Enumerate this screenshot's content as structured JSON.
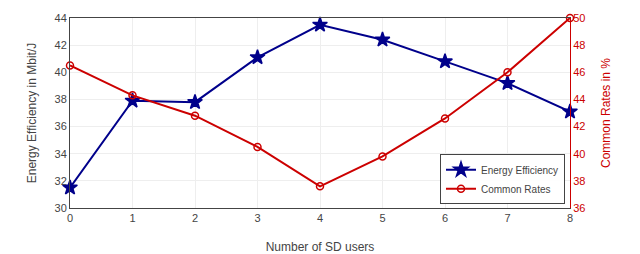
{
  "chart_data": {
    "type": "line",
    "x": [
      0,
      1,
      2,
      3,
      4,
      5,
      6,
      7,
      8
    ],
    "xlabel": "Number of SD users",
    "ylabel": "Energy Efficiency in Mbit/J",
    "y2label": "Common Rates in %",
    "xlim": [
      0,
      8
    ],
    "xticks": [
      0,
      1,
      2,
      3,
      4,
      5,
      6,
      7,
      8
    ],
    "ylim": [
      30,
      44
    ],
    "yticks": [
      30,
      32,
      34,
      36,
      38,
      40,
      42,
      44
    ],
    "y2lim": [
      36,
      50
    ],
    "y2ticks": [
      36,
      38,
      40,
      42,
      44,
      46,
      48,
      50
    ],
    "grid": true,
    "legend": "lower right",
    "series": [
      {
        "name": "Energy Efficiency",
        "color": "#00008B",
        "marker": "star",
        "values": [
          31.5,
          37.9,
          37.8,
          41.1,
          43.5,
          42.4,
          40.8,
          39.2,
          37.1
        ]
      },
      {
        "name": "Common Rates",
        "color": "#CC0000",
        "marker": "circle-open",
        "axis": "y2",
        "values": [
          46.5,
          44.3,
          42.8,
          40.5,
          37.6,
          39.8,
          42.6,
          46.0,
          50.0
        ]
      }
    ]
  }
}
